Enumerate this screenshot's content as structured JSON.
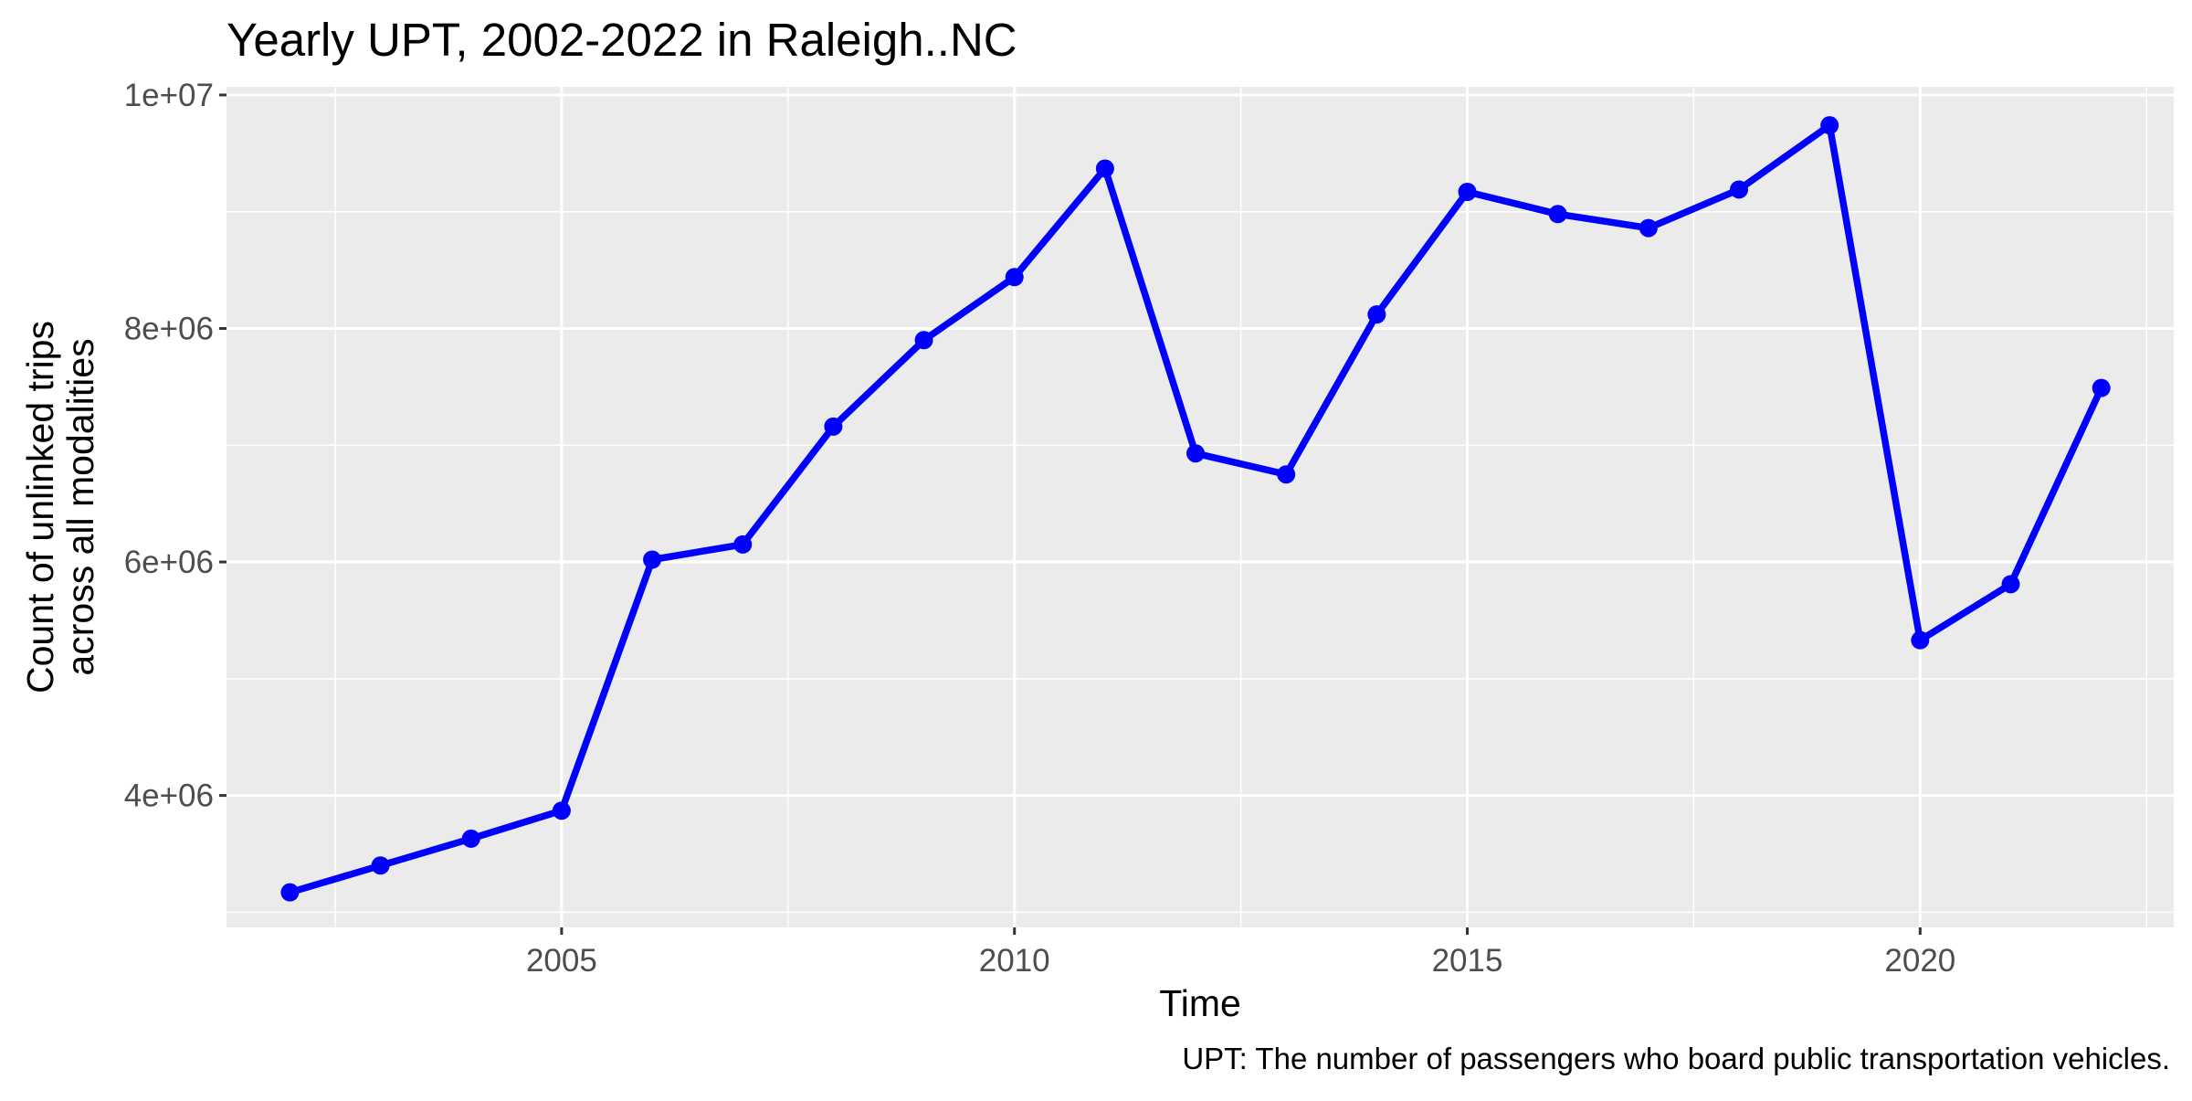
{
  "chart_data": {
    "type": "line",
    "title": "Yearly UPT, 2002-2022 in Raleigh..NC",
    "xlabel": "Time",
    "ylabel_lines": [
      "Count of unlinked trips",
      "across all modalities"
    ],
    "caption": "UPT: The number of passengers who board public transportation vehicles.",
    "x": [
      2002,
      2003,
      2004,
      2005,
      2006,
      2007,
      2008,
      2009,
      2010,
      2011,
      2012,
      2013,
      2014,
      2015,
      2016,
      2017,
      2018,
      2019,
      2020,
      2021,
      2022
    ],
    "series": [
      {
        "values": [
          3170000,
          3400000,
          3630000,
          3870000,
          6020000,
          6150000,
          7160000,
          7900000,
          8440000,
          9370000,
          6930000,
          6750000,
          8120000,
          9170000,
          8980000,
          8860000,
          9190000,
          9740000,
          5330000,
          5810000,
          7490000
        ]
      }
    ],
    "xlim": [
      2001.3,
      2022.8
    ],
    "ylim": [
      2870000,
      10070000
    ],
    "x_ticks": [
      2005,
      2010,
      2015,
      2020
    ],
    "x_tick_labels": [
      "2005",
      "2010",
      "2015",
      "2020"
    ],
    "y_ticks": [
      4000000,
      6000000,
      8000000,
      10000000
    ],
    "y_tick_labels": [
      "4e+06",
      "6e+06",
      "8e+06",
      "1e+07"
    ],
    "grid": true,
    "legend": "none",
    "colors": {
      "line": "#0000ff",
      "panel_background": "#ebebeb",
      "grid": "#ffffff",
      "tick_label": "#4d4d4d",
      "tick_mark": "#333333"
    }
  }
}
